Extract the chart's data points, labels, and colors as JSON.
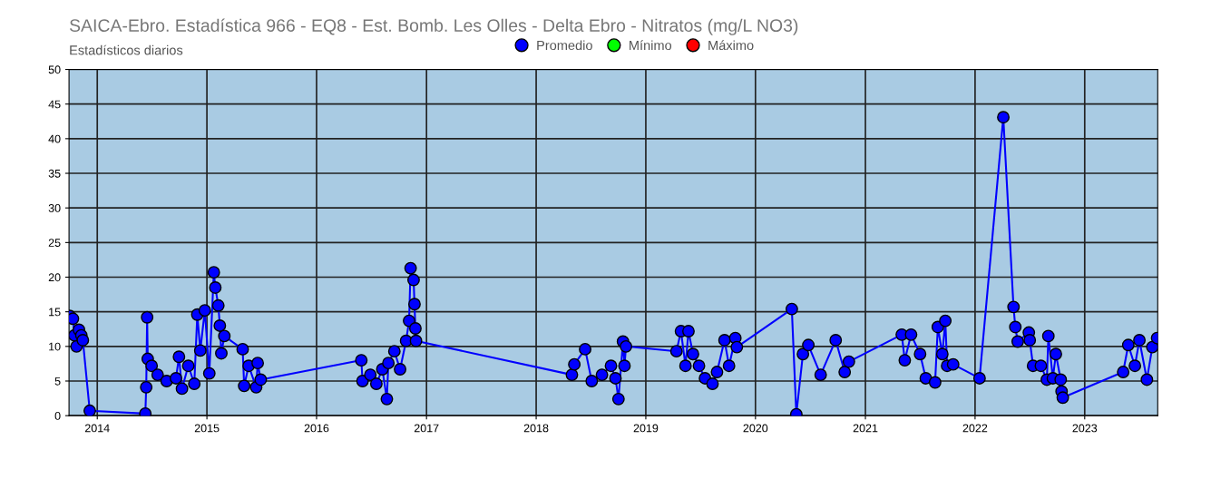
{
  "chart_data": {
    "type": "line",
    "title": "SAICA-Ebro. Estadística 966 - EQ8 - Est. Bomb. Les Olles - Delta Ebro - Nitratos (mg/L NO3)",
    "subtitle": "Estadísticos diarios",
    "x": [
      "2013-10-01",
      "2013-10-12",
      "2013-10-17",
      "2013-10-24",
      "2013-11-01",
      "2013-11-09",
      "2013-11-14",
      "2013-12-07",
      "2014-06-10",
      "2014-06-13",
      "2014-06-16",
      "2014-06-18",
      "2014-07-01",
      "2014-07-21",
      "2014-08-20",
      "2014-09-20",
      "2014-09-30",
      "2014-10-10",
      "2014-10-31",
      "2014-11-20",
      "2014-11-30",
      "2014-12-10",
      "2014-12-25",
      "2015-01-09",
      "2015-01-24",
      "2015-01-29",
      "2015-02-08",
      "2015-02-13",
      "2015-02-18",
      "2015-02-28",
      "2015-04-30",
      "2015-05-05",
      "2015-05-20",
      "2015-06-14",
      "2015-06-19",
      "2015-06-29",
      "2016-05-29",
      "2016-06-02",
      "2016-06-28",
      "2016-07-18",
      "2016-08-07",
      "2016-08-22",
      "2016-08-27",
      "2016-09-16",
      "2016-10-05",
      "2016-10-25",
      "2016-11-04",
      "2016-11-09",
      "2016-11-19",
      "2016-11-22",
      "2016-11-25",
      "2016-11-27",
      "2018-04-30",
      "2018-05-08",
      "2018-06-13",
      "2018-07-05",
      "2018-08-08",
      "2018-09-07",
      "2018-09-22",
      "2018-10-02",
      "2018-10-17",
      "2018-10-22",
      "2018-10-27",
      "2019-04-13",
      "2019-04-28",
      "2019-05-13",
      "2019-05-23",
      "2019-06-07",
      "2019-06-27",
      "2019-07-17",
      "2019-08-11",
      "2019-08-26",
      "2019-09-20",
      "2019-10-05",
      "2019-10-26",
      "2019-10-31",
      "2020-05-01",
      "2020-05-16",
      "2020-06-07",
      "2020-06-25",
      "2020-08-05",
      "2020-09-24",
      "2020-10-24",
      "2020-11-07",
      "2021-05-02",
      "2021-05-12",
      "2021-06-02",
      "2021-07-02",
      "2021-07-21",
      "2021-08-21",
      "2021-08-30",
      "2021-09-14",
      "2021-09-24",
      "2021-09-30",
      "2021-10-20",
      "2022-01-16",
      "2022-04-05",
      "2022-05-09",
      "2022-05-15",
      "2022-05-23",
      "2022-06-29",
      "2022-07-02",
      "2022-07-13",
      "2022-08-08",
      "2022-08-28",
      "2022-09-02",
      "2022-09-17",
      "2022-09-27",
      "2022-10-13",
      "2022-10-16",
      "2022-10-20",
      "2023-05-09",
      "2023-05-26",
      "2023-06-17",
      "2023-07-02",
      "2023-07-27",
      "2023-08-14",
      "2023-08-30"
    ],
    "series": [
      {
        "name": "Promedio",
        "color": "#0000ff",
        "values": [
          14.4,
          14.0,
          11.6,
          10.0,
          12.4,
          11.6,
          10.9,
          0.7,
          0.3,
          4.1,
          14.2,
          8.2,
          7.2,
          5.9,
          5.0,
          5.4,
          8.5,
          3.9,
          7.2,
          4.6,
          14.6,
          9.4,
          15.2,
          6.1,
          20.7,
          18.5,
          15.9,
          13.0,
          9.0,
          11.5,
          9.6,
          4.3,
          7.2,
          4.1,
          7.6,
          5.2,
          8.0,
          5.0,
          5.9,
          4.6,
          6.7,
          2.4,
          7.6,
          9.3,
          6.7,
          10.8,
          13.7,
          21.3,
          19.6,
          16.1,
          12.6,
          10.8,
          5.9,
          7.4,
          9.6,
          5.0,
          5.9,
          7.2,
          5.4,
          2.4,
          10.7,
          7.2,
          10.0,
          9.3,
          12.2,
          7.2,
          12.2,
          8.9,
          7.2,
          5.4,
          4.6,
          6.3,
          10.9,
          7.2,
          11.2,
          9.9,
          15.4,
          0.2,
          8.9,
          10.2,
          5.9,
          10.9,
          6.3,
          7.8,
          11.7,
          8.0,
          11.7,
          8.9,
          5.4,
          4.8,
          12.8,
          8.9,
          13.7,
          7.2,
          7.4,
          5.4,
          43.1,
          15.7,
          12.8,
          10.7,
          12.0,
          10.9,
          7.2,
          7.2,
          5.2,
          11.5,
          5.4,
          8.9,
          5.2,
          3.5,
          2.6,
          6.3,
          10.2,
          7.2,
          10.9,
          5.2,
          9.9,
          11.2
        ]
      },
      {
        "name": "Mínimo",
        "color": "#00ff00",
        "values": [
          null,
          null,
          null,
          null,
          null,
          null,
          null,
          null,
          null,
          null,
          null,
          null,
          null,
          null,
          null,
          null,
          null,
          null,
          null,
          null,
          null,
          null,
          null,
          null,
          null,
          null,
          null,
          null,
          null,
          null,
          null,
          null,
          null,
          null,
          null,
          null,
          null,
          null,
          null,
          null,
          null,
          null,
          null,
          null,
          null,
          null,
          null,
          null,
          null,
          null,
          null,
          null,
          null,
          null,
          null,
          null,
          null,
          null,
          null,
          null,
          null,
          null,
          null,
          null,
          null,
          null,
          null,
          null,
          null,
          null,
          null,
          null,
          null,
          null,
          null,
          null,
          null,
          null,
          null,
          null,
          null,
          null,
          null,
          null,
          null,
          null,
          null,
          null,
          null,
          null,
          null,
          null,
          null,
          null,
          null,
          null,
          null,
          null,
          null,
          null,
          null,
          null,
          null,
          null,
          null,
          null,
          null,
          null,
          null,
          null,
          null,
          null,
          null,
          null,
          null,
          null,
          null,
          null
        ]
      },
      {
        "name": "Máximo",
        "color": "#ff0000",
        "values": [
          null,
          null,
          null,
          null,
          null,
          null,
          null,
          null,
          null,
          null,
          null,
          null,
          null,
          null,
          null,
          null,
          null,
          null,
          null,
          null,
          null,
          null,
          null,
          null,
          null,
          null,
          null,
          null,
          null,
          null,
          null,
          null,
          null,
          null,
          null,
          null,
          null,
          null,
          null,
          null,
          null,
          null,
          null,
          null,
          null,
          null,
          null,
          null,
          null,
          null,
          null,
          null,
          null,
          null,
          null,
          null,
          null,
          null,
          null,
          null,
          null,
          null,
          null,
          null,
          null,
          null,
          null,
          null,
          null,
          null,
          null,
          null,
          null,
          null,
          null,
          null,
          null,
          null,
          null,
          null,
          null,
          null,
          null,
          null,
          null,
          null,
          null,
          null,
          null,
          null,
          null,
          null,
          null,
          null,
          null,
          null,
          null,
          null,
          null,
          null,
          null,
          null,
          null,
          null,
          null,
          null,
          null,
          null,
          null,
          null,
          null,
          null,
          null,
          null,
          null,
          null,
          null,
          null
        ]
      }
    ],
    "xlim": [
      "2013-09-29",
      "2023-09-01"
    ],
    "xticks": [
      {
        "value": "2014-01-01",
        "label": "2014"
      },
      {
        "value": "2015-01-01",
        "label": "2015"
      },
      {
        "value": "2016-01-01",
        "label": "2016"
      },
      {
        "value": "2017-01-01",
        "label": "2017"
      },
      {
        "value": "2018-01-01",
        "label": "2018"
      },
      {
        "value": "2019-01-01",
        "label": "2019"
      },
      {
        "value": "2020-01-01",
        "label": "2020"
      },
      {
        "value": "2021-01-01",
        "label": "2021"
      },
      {
        "value": "2022-01-01",
        "label": "2022"
      },
      {
        "value": "2023-01-01",
        "label": "2023"
      }
    ],
    "ylim": [
      0,
      50
    ],
    "yticks": [
      0,
      5,
      10,
      15,
      20,
      25,
      30,
      35,
      40,
      45,
      50
    ],
    "grid": true,
    "legend": "top",
    "marker": "circle",
    "line_style": "solid"
  }
}
